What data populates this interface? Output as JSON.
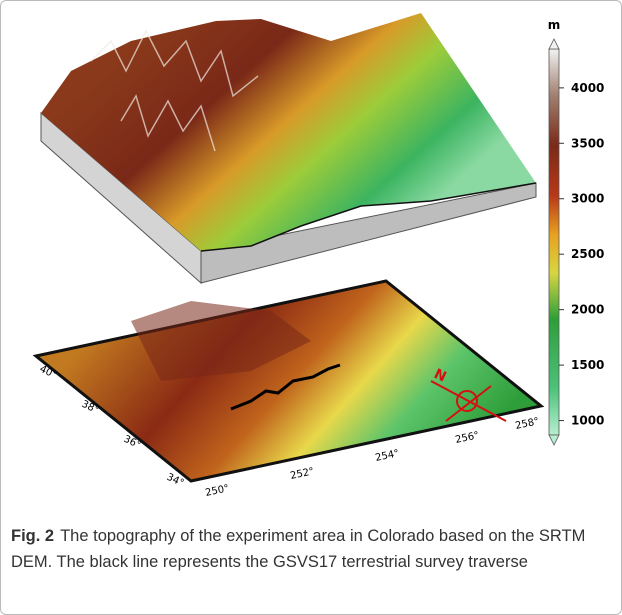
{
  "figure": {
    "colorbar": {
      "unit": "m",
      "range": [
        870,
        4350
      ],
      "ticks": [
        1000,
        1500,
        2000,
        2500,
        3000,
        3500,
        4000
      ]
    },
    "lat_labels": [
      "40°",
      "38°",
      "36°",
      "34°"
    ],
    "lon_labels": [
      "250°",
      "252°",
      "254°",
      "256°",
      "258°"
    ],
    "caption": {
      "label": "Fig. 2",
      "text": "The topography of the experiment area in Colorado based on the SRTM DEM. The black line represents the GSVS17 terrestrial survey traverse"
    }
  }
}
